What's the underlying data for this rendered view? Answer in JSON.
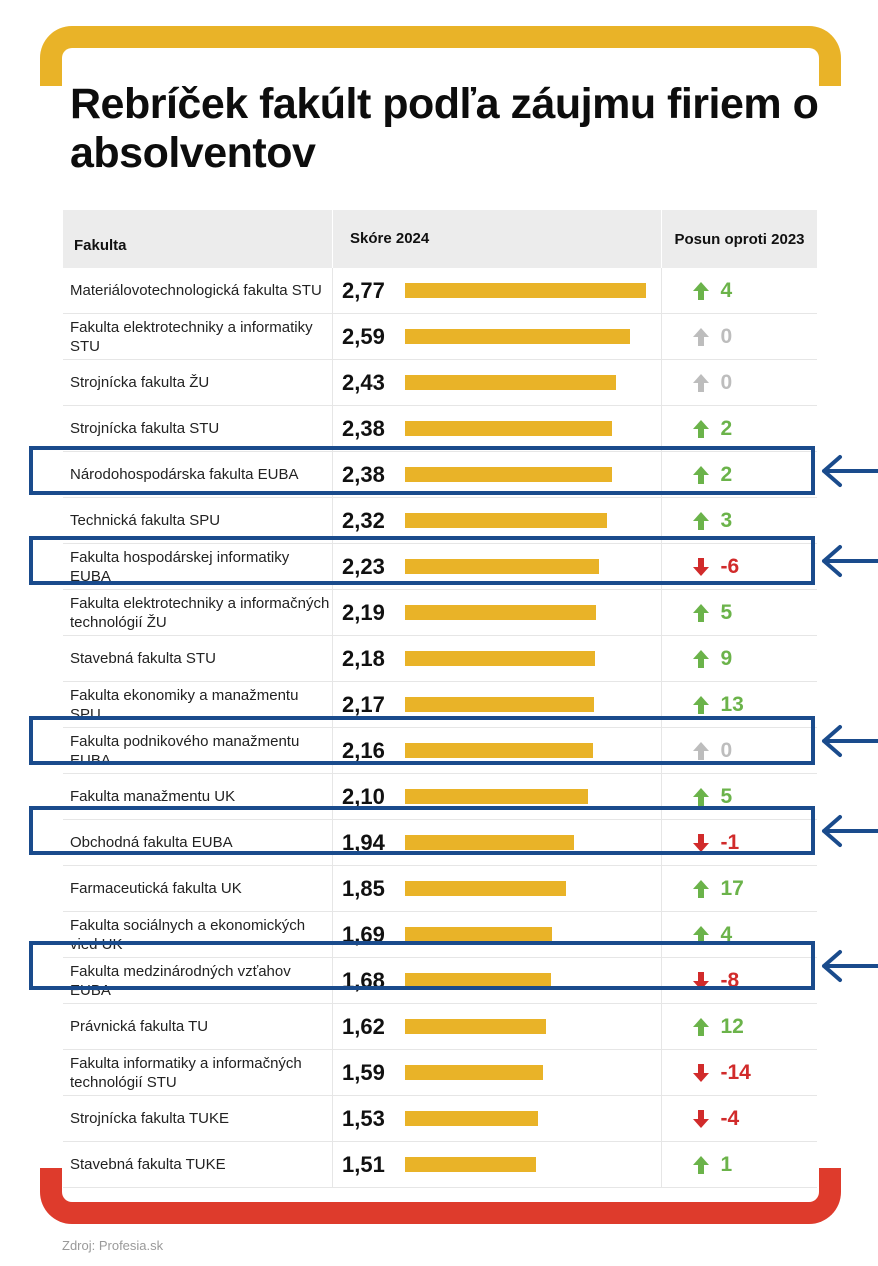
{
  "title": "Rebríček fakúlt podľa záujmu firiem o absolventov",
  "header": {
    "col1": "Fakulta",
    "col2": "Skóre 2024",
    "col3": "Posun oproti 2023"
  },
  "source": "Zdroj: Profesia.sk",
  "colors": {
    "bar": "#e9b328",
    "up": "#6bb34a",
    "down": "#d12b2b",
    "neutral": "#bdbdbd",
    "highlight": "#1a4b8c",
    "frame_top": "#e9b328",
    "frame_bottom": "#de3b2c"
  },
  "chart_data": {
    "type": "bar",
    "categories": [
      "Materiálovotechnologická fakulta STU",
      "Fakulta elektrotechniky a informatiky STU",
      "Strojnícka fakulta ŽU",
      "Strojnícka fakulta STU",
      "Národohospodárska fakulta EUBA",
      "Technická fakulta SPU",
      "Fakulta hospodárskej informatiky EUBA",
      "Fakulta elektrotechniky a informačných technológií ŽU",
      "Stavebná fakulta STU",
      "Fakulta ekonomiky a manažmentu SPU",
      "Fakulta podnikového manažmentu EUBA",
      "Fakulta manažmentu UK",
      "Obchodná fakulta EUBA",
      "Farmaceutická fakulta UK",
      "Fakulta sociálnych a ekonomických vied UK",
      "Fakulta medzinárodných vzťahov EUBA",
      "Právnická fakulta TU",
      "Fakulta informatiky a informačných technológií STU",
      "Strojnícka fakulta TUKE",
      "Stavebná fakulta TUKE"
    ],
    "values": [
      2.77,
      2.59,
      2.43,
      2.38,
      2.38,
      2.32,
      2.23,
      2.19,
      2.18,
      2.17,
      2.16,
      2.1,
      1.94,
      1.85,
      1.69,
      1.68,
      1.62,
      1.59,
      1.53,
      1.51
    ],
    "score_labels": [
      "2,77",
      "2,59",
      "2,43",
      "2,38",
      "2,38",
      "2,32",
      "2,23",
      "2,19",
      "2,18",
      "2,17",
      "2,16",
      "2,10",
      "1,94",
      "1,85",
      "1,69",
      "1,68",
      "1,62",
      "1,59",
      "1,53",
      "1,51"
    ],
    "change": [
      4,
      0,
      0,
      2,
      2,
      3,
      -6,
      5,
      9,
      13,
      0,
      5,
      -1,
      17,
      4,
      -8,
      12,
      -14,
      -4,
      1
    ],
    "change_labels": [
      "4",
      "0",
      "0",
      "2",
      "2",
      "3",
      "-6",
      "5",
      "9",
      "13",
      "0",
      "5",
      "-1",
      "17",
      "4",
      "-8",
      "12",
      "-14",
      "-4",
      "1"
    ],
    "highlighted": [
      4,
      6,
      10,
      12,
      15
    ],
    "ylim": [
      0,
      2.77
    ]
  }
}
